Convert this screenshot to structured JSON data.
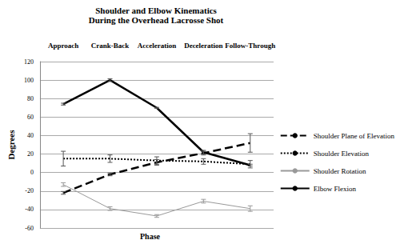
{
  "chart_data": {
    "type": "line",
    "title": "Shoulder and Elbow Kinematics\nDuring the Overhead Lacrosse Shot",
    "xlabel": "Phase",
    "ylabel": "Degrees",
    "categories": [
      "Approach",
      "Crank-Back",
      "Acceleration",
      "Deceleration",
      "Follow-Through"
    ],
    "series": [
      {
        "name": "Shoulder Plane of Elevation",
        "color": "#000000",
        "line_style": "dashed",
        "values": [
          -22,
          -2,
          11,
          21,
          32
        ],
        "errors": [
          1.5,
          1.5,
          3,
          2,
          10
        ]
      },
      {
        "name": "Shoulder Elevation",
        "color": "#000000",
        "line_style": "dotted",
        "values": [
          15,
          15,
          13,
          12,
          9
        ],
        "errors": [
          8,
          4,
          4,
          3,
          4
        ]
      },
      {
        "name": "Shoulder Rotation",
        "color": "#999999",
        "line_style": "solid",
        "values": [
          -13,
          -39,
          -47,
          -31,
          -39
        ],
        "errors": [
          2,
          2,
          1.5,
          2,
          3
        ]
      },
      {
        "name": "Elbow Flexion",
        "color": "#000000",
        "line_style": "solid",
        "values": [
          74,
          100,
          70,
          22,
          8
        ],
        "errors": [
          1,
          1.5,
          0.5,
          2,
          1
        ]
      }
    ],
    "ylim": [
      -60,
      120
    ],
    "yticks": [
      -60,
      -40,
      -20,
      0,
      20,
      40,
      60,
      80,
      100,
      120
    ],
    "grid": true,
    "legend": "right"
  }
}
